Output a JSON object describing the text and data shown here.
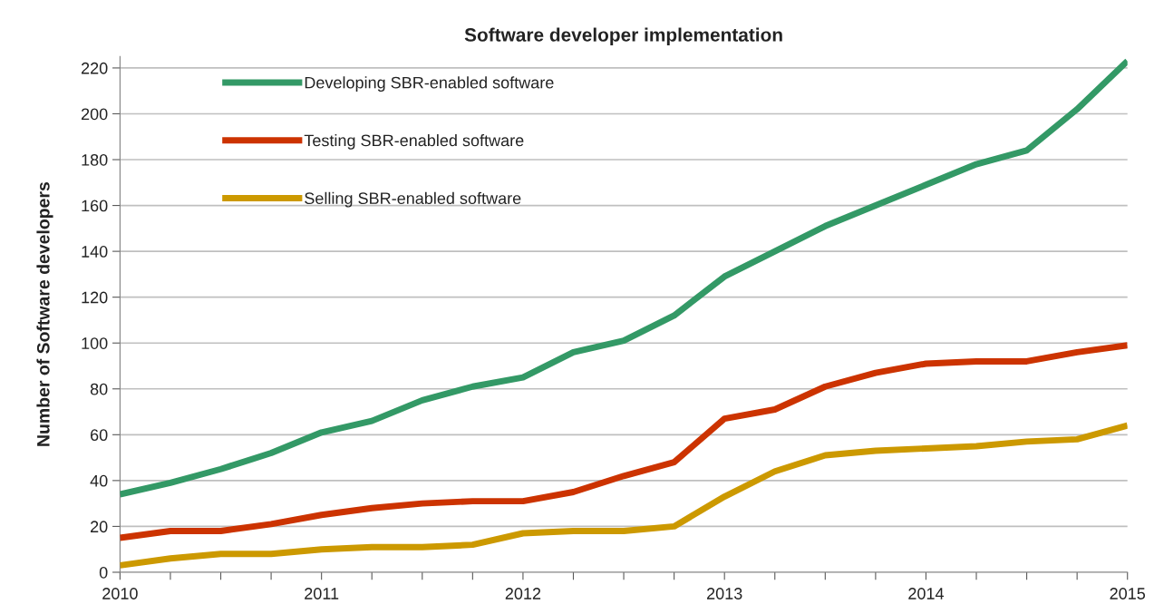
{
  "chart_data": {
    "type": "line",
    "title": "Software developer implementation",
    "ylabel": "Number of Software developers",
    "x": [
      2010,
      2010.25,
      2010.5,
      2010.75,
      2011,
      2011.25,
      2011.5,
      2011.75,
      2012,
      2012.25,
      2012.5,
      2012.75,
      2013,
      2013.25,
      2013.5,
      2013.75,
      2014,
      2014.25,
      2014.5,
      2014.75,
      2015
    ],
    "series": [
      {
        "name": "Developing SBR-enabled software",
        "color": "#339966",
        "values": [
          34,
          39,
          45,
          52,
          61,
          66,
          75,
          81,
          85,
          96,
          101,
          112,
          129,
          140,
          151,
          160,
          169,
          178,
          184,
          202,
          223
        ]
      },
      {
        "name": "Testing SBR-enabled software",
        "color": "#cc3300",
        "values": [
          15,
          18,
          18,
          21,
          25,
          28,
          30,
          31,
          31,
          35,
          42,
          48,
          67,
          71,
          81,
          87,
          91,
          92,
          92,
          96,
          99
        ]
      },
      {
        "name": "Selling SBR-enabled software",
        "color": "#cc9900",
        "values": [
          3,
          6,
          8,
          8,
          10,
          11,
          11,
          12,
          17,
          18,
          18,
          20,
          33,
          44,
          51,
          53,
          54,
          55,
          57,
          58,
          64
        ]
      }
    ],
    "xlim": [
      2010,
      2015
    ],
    "xticks": [
      2010,
      {
        "value": 2010.25,
        "label": null
      },
      {
        "value": 2010.5,
        "label": null
      },
      {
        "value": 2010.75,
        "label": null
      },
      2011,
      {
        "value": 2011.25,
        "label": null
      },
      {
        "value": 2011.5,
        "label": null
      },
      {
        "value": 2011.75,
        "label": null
      },
      2012,
      {
        "value": 2012.25,
        "label": null
      },
      {
        "value": 2012.5,
        "label": null
      },
      {
        "value": 2012.75,
        "label": null
      },
      2013,
      {
        "value": 2013.25,
        "label": null
      },
      {
        "value": 2013.5,
        "label": null
      },
      {
        "value": 2013.75,
        "label": null
      },
      2014,
      {
        "value": 2014.25,
        "label": null
      },
      {
        "value": 2014.5,
        "label": null
      },
      {
        "value": 2014.75,
        "label": null
      },
      2015
    ],
    "ylim": [
      0,
      225
    ],
    "yticks": [
      0,
      20,
      40,
      60,
      80,
      100,
      120,
      140,
      160,
      180,
      200,
      220
    ],
    "grid": "y",
    "legend": "top left",
    "line_style": "solid",
    "marker": "none"
  }
}
